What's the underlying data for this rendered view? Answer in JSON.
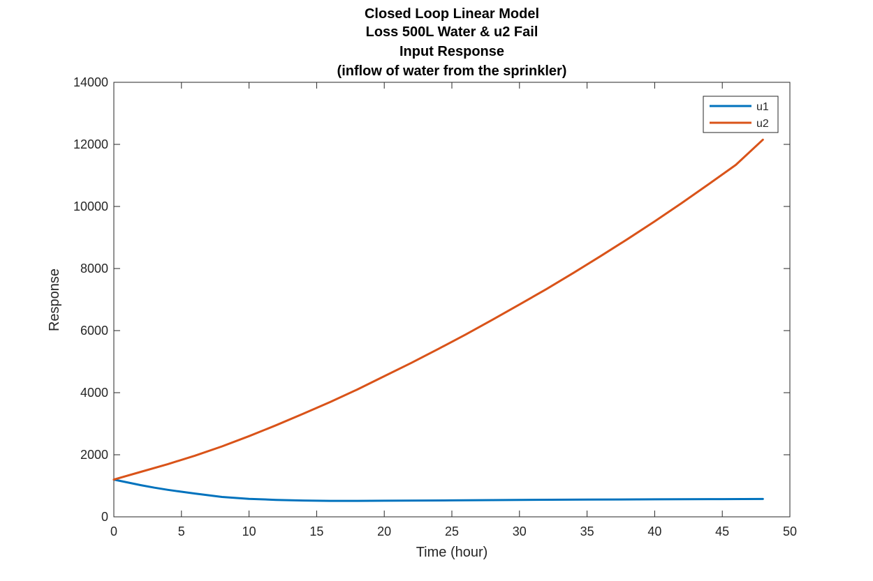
{
  "chart_data": {
    "type": "line",
    "title_lines": [
      "Closed Loop Linear Model",
      "Loss 500L Water & u2 Fail",
      "Input Response",
      "(inflow of water from the sprinkler)"
    ],
    "xlabel": "Time (hour)",
    "ylabel": "Response",
    "xlim": [
      0,
      50
    ],
    "ylim": [
      0,
      14000
    ],
    "xticks": [
      0,
      5,
      10,
      15,
      20,
      25,
      30,
      35,
      40,
      45,
      50
    ],
    "yticks": [
      0,
      2000,
      4000,
      6000,
      8000,
      10000,
      12000,
      14000
    ],
    "grid": false,
    "legend_position": "top-right",
    "series": [
      {
        "name": "u1",
        "color": "#0072BD",
        "x": [
          0,
          1,
          2,
          3,
          4,
          5,
          6,
          8,
          10,
          12,
          14,
          16,
          18,
          20,
          25,
          30,
          35,
          40,
          45,
          48
        ],
        "y": [
          1200,
          1110,
          1020,
          940,
          870,
          810,
          750,
          640,
          580,
          545,
          525,
          515,
          515,
          520,
          530,
          545,
          555,
          565,
          570,
          575
        ]
      },
      {
        "name": "u2",
        "color": "#D95319",
        "x": [
          0,
          2,
          4,
          6,
          8,
          10,
          12,
          14,
          16,
          18,
          20,
          22,
          24,
          26,
          28,
          30,
          32,
          34,
          36,
          38,
          40,
          42,
          44,
          46,
          48
        ],
        "y": [
          1200,
          1450,
          1700,
          1970,
          2270,
          2600,
          2950,
          3320,
          3700,
          4100,
          4530,
          4960,
          5410,
          5870,
          6350,
          6840,
          7340,
          7860,
          8400,
          8950,
          9520,
          10110,
          10720,
          11340,
          12150
        ]
      }
    ]
  }
}
